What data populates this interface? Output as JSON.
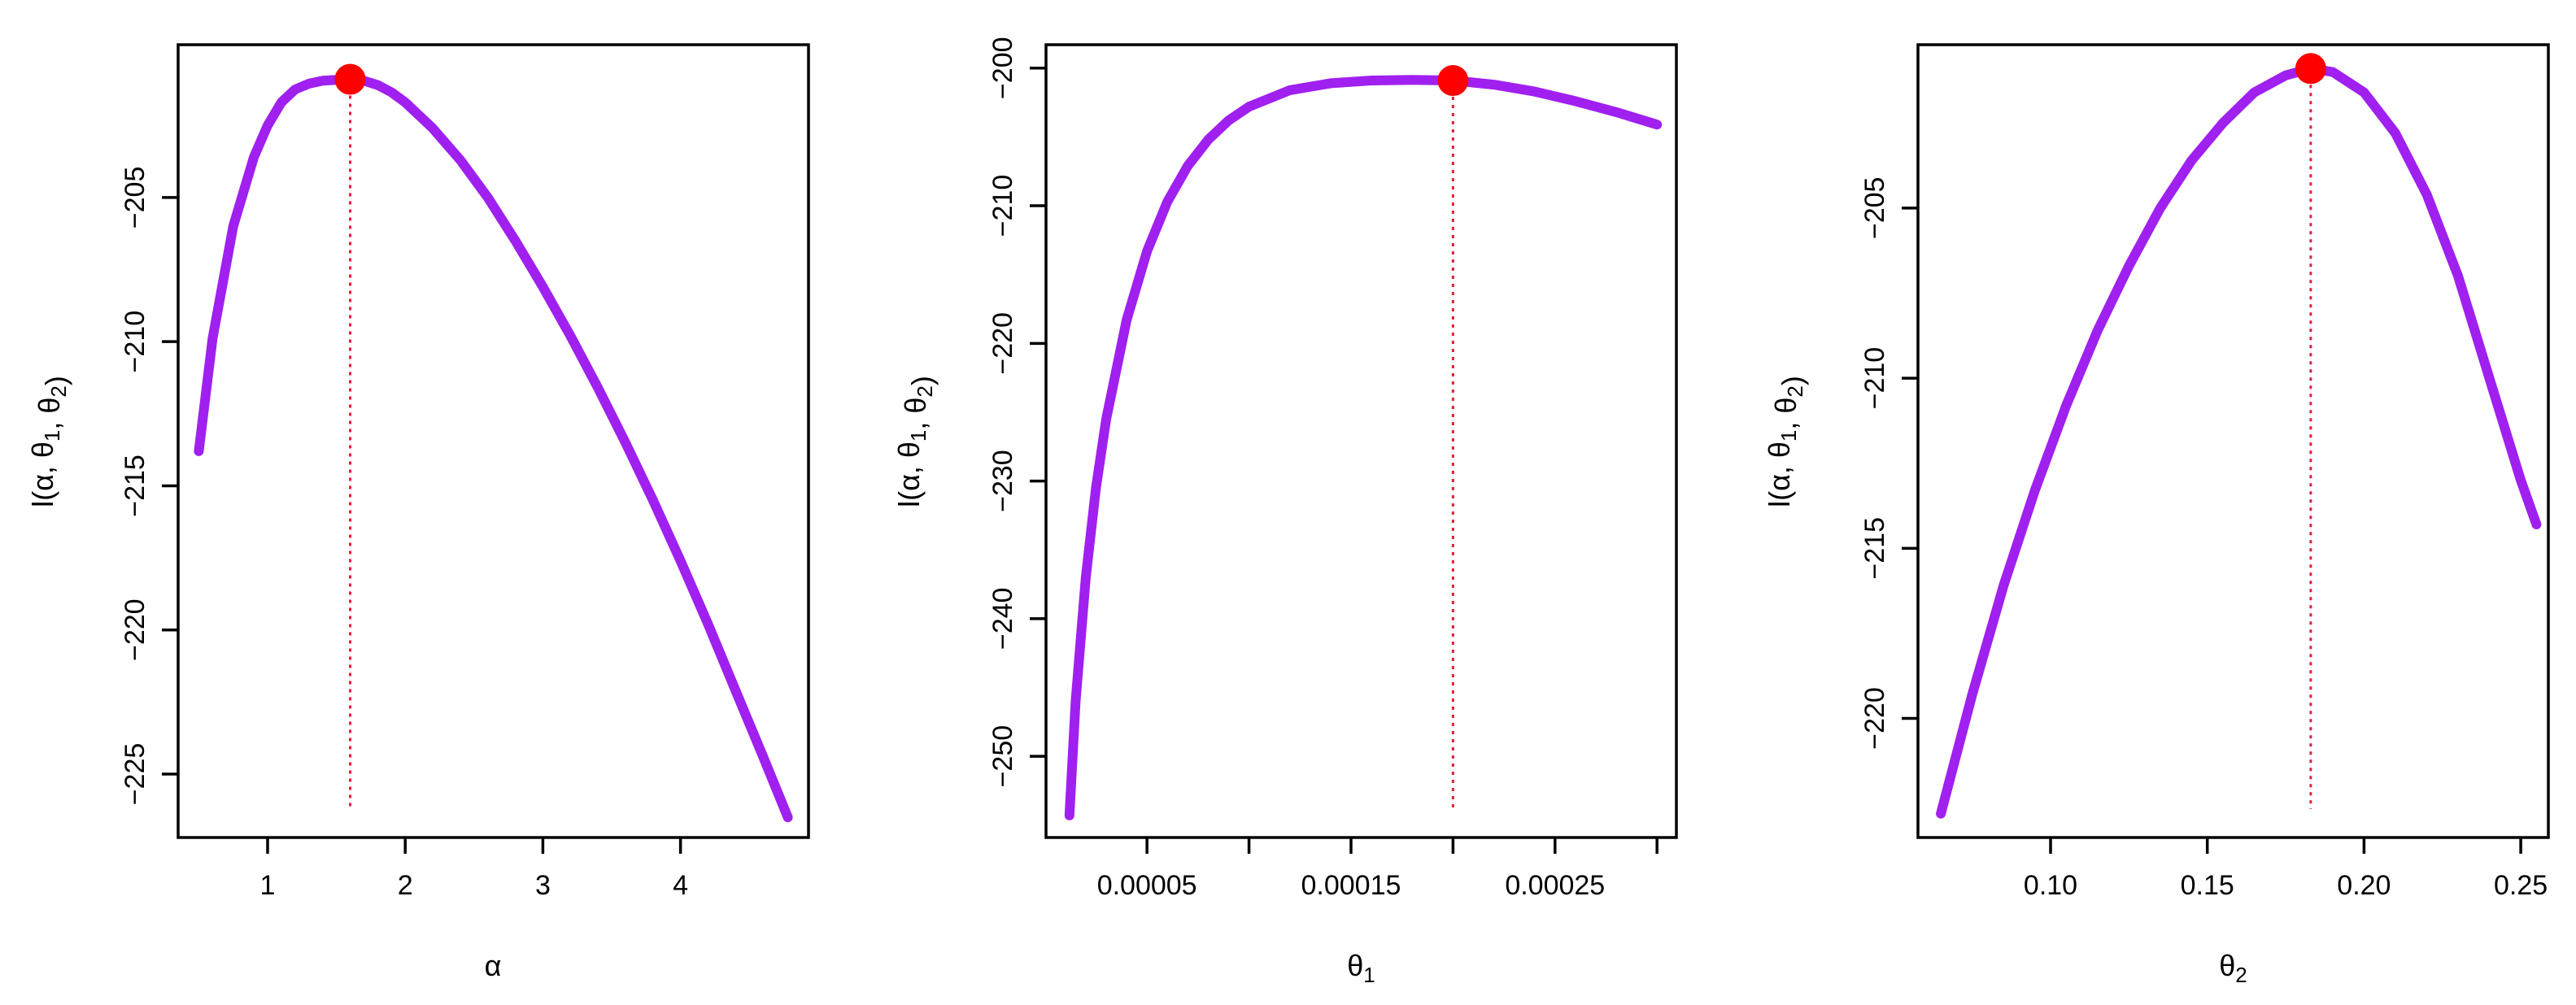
{
  "colors": {
    "curve": "#a020f0",
    "max_point": "#ff0000",
    "guide_line": "#e0203a"
  },
  "chart_data": [
    {
      "type": "line",
      "xlabel": "α",
      "ylabel": "l(α, θ1, θ2)",
      "xlim": [
        0.35,
        4.93
      ],
      "ylim": [
        -227.2,
        -199.7
      ],
      "xticks": [
        1,
        2,
        3,
        4
      ],
      "xtick_labels": [
        "1",
        "2",
        "3",
        "4"
      ],
      "yticks": [
        -205,
        -210,
        -215,
        -220,
        -225
      ],
      "ytick_labels": [
        "−205",
        "−210",
        "−215",
        "−220",
        "−225"
      ],
      "series": [
        {
          "x": [
            0.5,
            0.6,
            0.75,
            0.9,
            1.0,
            1.1,
            1.2,
            1.3,
            1.4,
            1.5,
            1.6,
            1.7,
            1.8,
            1.9,
            2.0,
            2.2,
            2.4,
            2.6,
            2.8,
            3.0,
            3.2,
            3.4,
            3.6,
            3.8,
            4.0,
            4.2,
            4.4,
            4.6,
            4.78
          ],
          "y": [
            -213.8,
            -209.9,
            -206.0,
            -203.6,
            -202.5,
            -201.7,
            -201.25,
            -201.05,
            -200.95,
            -200.92,
            -200.9,
            -200.95,
            -201.1,
            -201.35,
            -201.7,
            -202.6,
            -203.7,
            -205.0,
            -206.5,
            -208.1,
            -209.8,
            -211.6,
            -213.5,
            -215.5,
            -217.6,
            -219.8,
            -222.1,
            -224.4,
            -226.5
          ]
        }
      ],
      "maximum": {
        "x": 1.6,
        "y": -200.9
      }
    },
    {
      "type": "line",
      "xlabel": "θ1",
      "ylabel": "l(α, θ1, θ2)",
      "xlim": [
        5e-07,
        0.0003095
      ],
      "ylim": [
        -255.9,
        -198.3
      ],
      "xticks": [
        5e-05,
        0.0001,
        0.00015,
        0.0002,
        0.00025,
        0.0003
      ],
      "xtick_labels": [
        "0.00005",
        "",
        "0.00015",
        "",
        "0.00025",
        ""
      ],
      "yticks": [
        -200,
        -210,
        -220,
        -230,
        -240,
        -250
      ],
      "ytick_labels": [
        "−200",
        "−210",
        "−220",
        "−230",
        "−240",
        "−250"
      ],
      "series": [
        {
          "x": [
            1.2e-05,
            1.5e-05,
            2e-05,
            2.5e-05,
            3e-05,
            4e-05,
            5e-05,
            6e-05,
            7e-05,
            8e-05,
            9e-05,
            0.0001,
            0.00012,
            0.00014,
            0.00016,
            0.00018,
            0.0002,
            0.00022,
            0.00024,
            0.00026,
            0.00028,
            0.0003
          ],
          "y": [
            -254.3,
            -246.0,
            -237.0,
            -230.5,
            -225.5,
            -218.3,
            -213.3,
            -209.7,
            -207.1,
            -205.2,
            -203.8,
            -202.8,
            -201.6,
            -201.1,
            -200.9,
            -200.85,
            -200.9,
            -201.2,
            -201.7,
            -202.4,
            -203.2,
            -204.1
          ]
        }
      ],
      "maximum": {
        "x": 0.0002,
        "y": -200.9
      }
    },
    {
      "type": "line",
      "xlabel": "θ2",
      "ylabel": "l(α, θ1, θ2)",
      "xlim": [
        0.0577,
        0.2588
      ],
      "ylim": [
        -223.5,
        -200.2
      ],
      "xticks": [
        0.1,
        0.15,
        0.2,
        0.25
      ],
      "xtick_labels": [
        "0.10",
        "0.15",
        "0.20",
        "0.25"
      ],
      "yticks": [
        -205,
        -210,
        -215,
        -220
      ],
      "ytick_labels": [
        "−205",
        "−210",
        "−215",
        "−220"
      ],
      "series": [
        {
          "x": [
            0.065,
            0.075,
            0.085,
            0.095,
            0.105,
            0.115,
            0.125,
            0.135,
            0.145,
            0.155,
            0.165,
            0.175,
            0.183,
            0.19,
            0.2,
            0.21,
            0.22,
            0.23,
            0.24,
            0.25,
            0.255
          ],
          "y": [
            -222.8,
            -219.3,
            -216.1,
            -213.3,
            -210.8,
            -208.6,
            -206.7,
            -205.0,
            -203.6,
            -202.5,
            -201.6,
            -201.1,
            -200.9,
            -201.0,
            -201.6,
            -202.8,
            -204.6,
            -207.0,
            -210.0,
            -213.0,
            -214.3
          ]
        }
      ],
      "maximum": {
        "x": 0.183,
        "y": -200.9
      }
    }
  ]
}
